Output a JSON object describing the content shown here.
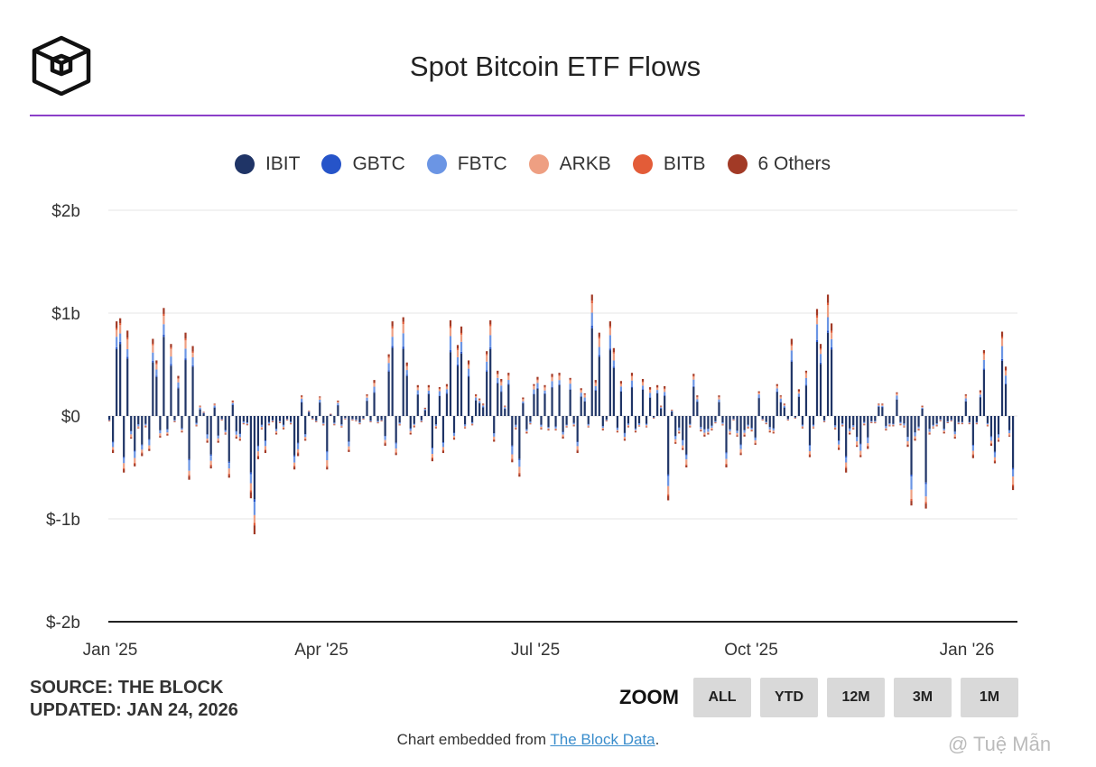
{
  "header": {
    "title": "Spot Bitcoin ETF Flows"
  },
  "legend": [
    {
      "label": "IBIT",
      "color": "#1f3466"
    },
    {
      "label": "GBTC",
      "color": "#2654c9"
    },
    {
      "label": "FBTC",
      "color": "#6b95e4"
    },
    {
      "label": "ARKB",
      "color": "#ee9f82"
    },
    {
      "label": "BITB",
      "color": "#e35c38"
    },
    {
      "label": "6 Others",
      "color": "#a23a26"
    }
  ],
  "chart_data": {
    "type": "bar",
    "stacked": true,
    "title": "Spot Bitcoin ETF Flows",
    "y_tick_labels": [
      "$2b",
      "$1b",
      "$0",
      "$-1b",
      "$-2b"
    ],
    "x_tick_labels": [
      "Jan '25",
      "Apr '25",
      "Jul '25",
      "Oct '25",
      "Jan '26"
    ],
    "ylim": [
      -2000,
      2000
    ],
    "y_unit": "millions USD",
    "grid": true,
    "legend_position": "top",
    "daily_net_flows": [
      [
        -50,
        -360,
        920,
        950,
        -550,
        830,
        -220,
        -490,
        -120,
        -390,
        -110,
        -340,
        750,
        540,
        -210,
        1050,
        -190,
        700,
        -60,
        390,
        -160,
        810,
        -620,
        680,
        -100,
        100,
        40,
        -260,
        -510,
        120,
        -260,
        -40,
        -180,
        -600,
        150,
        -220,
        -240,
        -80,
        -90,
        -800,
        -1150,
        -420,
        -130,
        -360,
        -90,
        -60,
        -180,
        -70,
        -130,
        -40,
        -80,
        -520,
        -390,
        200,
        -240,
        50,
        -30,
        -60,
        190,
        -90,
        -520,
        20,
        -90,
        150,
        -110,
        -30,
        -350,
        -40,
        -50,
        -80,
        -30,
        210,
        -60,
        350,
        -70,
        -50,
        -290
      ],
      [
        600,
        920,
        -380,
        -90,
        960,
        520,
        -180,
        -110,
        300,
        -60,
        80,
        300,
        -440,
        -120,
        280,
        -360,
        310,
        930,
        -230,
        690,
        870,
        -120,
        540,
        -90,
        210,
        170,
        120,
        630,
        930,
        -250,
        440,
        360,
        100,
        420,
        -450,
        -130,
        -590,
        180,
        -170,
        -80,
        310,
        380,
        -130,
        300,
        -140,
        410,
        -140,
        420,
        -220,
        -110,
        370,
        -100,
        -360,
        270,
        220,
        -110,
        1180,
        350,
        810,
        -140,
        -50,
        920,
        660,
        -160,
        340,
        -240,
        -110,
        420,
        -160,
        -100,
        360,
        -110,
        280,
        -20,
        300,
        100,
        290,
        -820,
        60,
        -270,
        -170,
        -330,
        -500,
        -110,
        410,
        200,
        -150,
        -200
      ],
      [
        -180,
        -140,
        -70,
        200,
        -90,
        -500,
        -180,
        -40,
        -200,
        -380,
        -200,
        -120,
        -150,
        -280,
        240,
        -40,
        -80,
        -160,
        -170,
        310,
        200,
        120,
        -40,
        750,
        -20,
        260,
        -120,
        440,
        -400,
        -120,
        1040,
        700,
        -60,
        1180,
        900,
        -130,
        -330,
        -100,
        -550,
        -180,
        -130,
        -300,
        -400,
        -90,
        -320,
        -70,
        -70,
        120,
        120,
        -140,
        -100,
        -100,
        230,
        -90,
        -110,
        -300,
        -870,
        -240,
        -140,
        100,
        -900,
        -180,
        -120,
        -100,
        -50,
        -170,
        -70,
        -50,
        -220,
        -80,
        -80,
        210,
        -80,
        -410,
        -80,
        250,
        640,
        -100,
        -290,
        -460,
        -250,
        820,
        480,
        -200,
        -720
      ]
    ]
  },
  "source": {
    "line1": "SOURCE: THE BLOCK",
    "line2": "UPDATED: JAN 24, 2026"
  },
  "zoom": {
    "label": "ZOOM",
    "buttons": [
      "ALL",
      "YTD",
      "12M",
      "3M",
      "1M"
    ]
  },
  "embed": {
    "prefix": "Chart embedded from ",
    "link_text": "The Block Data",
    "suffix": "."
  },
  "watermark": "@ Tuệ Mẫn"
}
